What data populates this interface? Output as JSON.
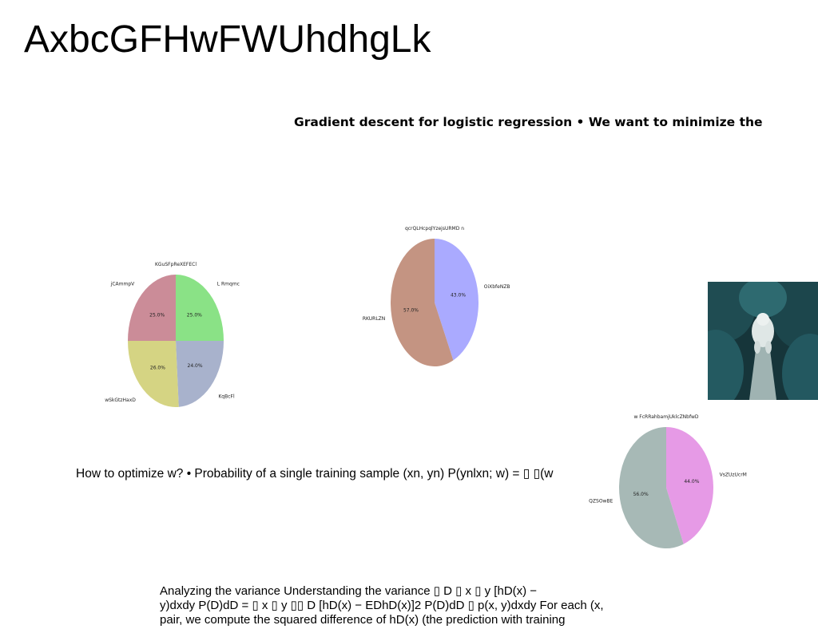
{
  "page": {
    "title": "AxbcGFHwFWUhdhgLk",
    "subtitle": "Gradient descent for logistic regression • We want to minimize the",
    "paragraph1": "How to optimize w? • Probability of a single training sample (xn, yn) P(ynlxn; w) = ▯ ▯(w",
    "paragraph2": [
      "Analyzing the variance Understanding the variance ▯ D ▯ x ▯ y [hD(x) −",
      "y)dxdy P(D)dD = ▯ x ▯ y ▯▯ D [hD(x) − EDhD(x)]2 P(D)dD ▯ p(x, y)dxdy For each (x,",
      "pair, we compute the squared difference of hD(x) (the prediction with training"
    ]
  },
  "chart_data": [
    {
      "type": "pie",
      "title": "KGuSFpReXEFECl",
      "labels": [
        "L Rmqmc",
        "KqBcFl",
        "wSkGtzHaxD",
        "jCAmmpV"
      ],
      "values": [
        25.0,
        24.0,
        26.0,
        25.0
      ],
      "value_labels": [
        "25.0%",
        "24.0%",
        "26.0%",
        "25.0%"
      ],
      "colors": [
        "#8ae286",
        "#a8b2cc",
        "#d5d483",
        "#cb8c98"
      ]
    },
    {
      "type": "pie",
      "title": "qcrQLHcpqlYzejsURMD n",
      "labels": [
        "OiXbfeNZB",
        "RKURLZN"
      ],
      "values": [
        43.0,
        57.0
      ],
      "value_labels": [
        "43.0%",
        "57.0%"
      ],
      "colors": [
        "#aaaaff",
        "#c49482"
      ]
    },
    {
      "type": "pie",
      "title": "w FcRRahbamjUklcZNbfwD",
      "labels": [
        "VsZUzUcrM",
        "QZSOwBE"
      ],
      "values": [
        44.0,
        56.0
      ],
      "value_labels": [
        "44.0%",
        "56.0%"
      ],
      "colors": [
        "#e69ae6",
        "#a7b9b6"
      ]
    }
  ],
  "photo": {
    "subject": "white dog on a path between dark teal bushes"
  }
}
